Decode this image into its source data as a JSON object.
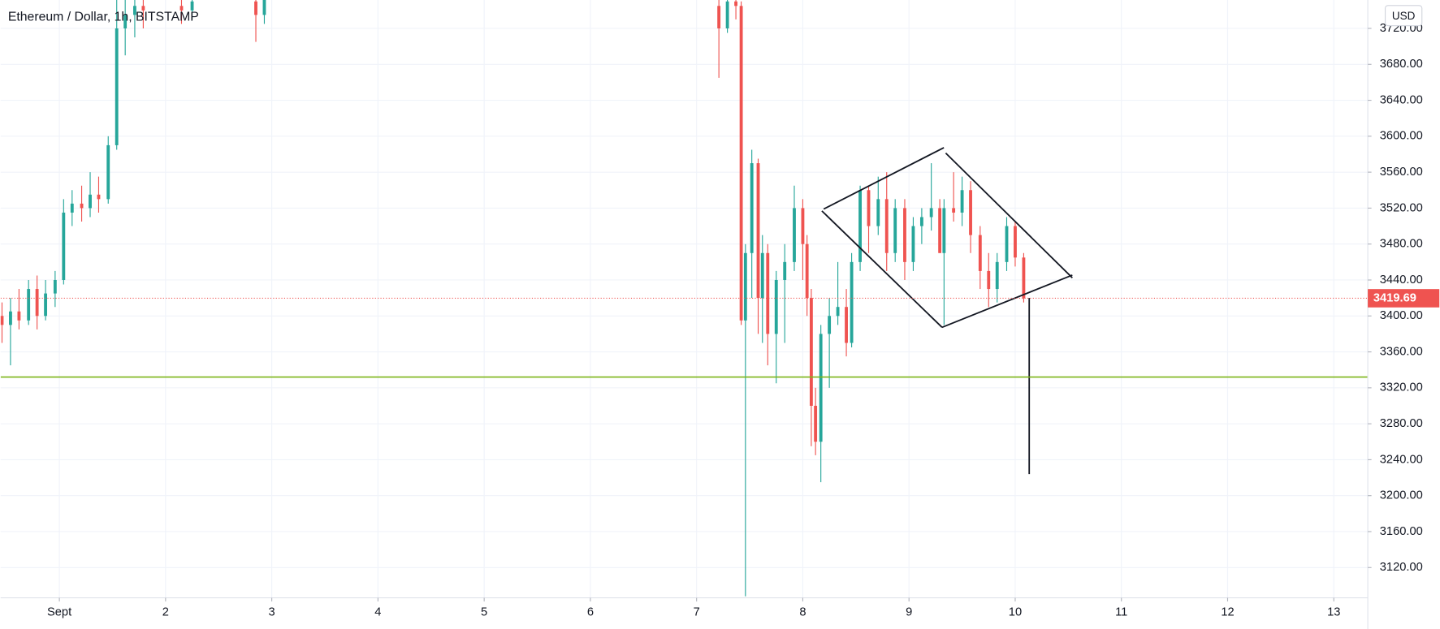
{
  "chart_data": {
    "type": "candlestick",
    "title": "Ethereum / Dollar, 1h, BITSTAMP",
    "currency": "USD",
    "up_color": "#26a69a",
    "down_color": "#ef5350",
    "grid": true,
    "xlim": [
      0.447,
      13.32
    ],
    "xticks": [
      {
        "value": 1,
        "label": "Sept"
      },
      2,
      3,
      4,
      5,
      6,
      7,
      8,
      9,
      10,
      11,
      12,
      13
    ],
    "ylim": [
      3086.3,
      3751.6
    ],
    "yticks": [
      {
        "value": 3120,
        "label": "3120.00"
      },
      {
        "value": 3160,
        "label": "3160.00"
      },
      {
        "value": 3200,
        "label": "3200.00"
      },
      {
        "value": 3240,
        "label": "3240.00"
      },
      {
        "value": 3280,
        "label": "3280.00"
      },
      {
        "value": 3320,
        "label": "3320.00"
      },
      {
        "value": 3360,
        "label": "3360.00"
      },
      {
        "value": 3400,
        "label": "3400.00"
      },
      {
        "value": 3440,
        "label": "3440.00"
      },
      {
        "value": 3480,
        "label": "3480.00"
      },
      {
        "value": 3520,
        "label": "3520.00"
      },
      {
        "value": 3560,
        "label": "3560.00"
      },
      {
        "value": 3600,
        "label": "3600.00"
      },
      {
        "value": 3640,
        "label": "3640.00"
      },
      {
        "value": 3680,
        "label": "3680.00"
      },
      {
        "value": 3720,
        "label": "3720.00"
      }
    ],
    "x": [
      0.46,
      0.54,
      0.62,
      0.71,
      0.79,
      0.87,
      0.96,
      1.04,
      1.12,
      1.21,
      1.29,
      1.37,
      1.46,
      1.54,
      1.62,
      1.71,
      1.79,
      2.15,
      2.25,
      2.85,
      2.93,
      7.21,
      7.29,
      7.37,
      7.42,
      7.46,
      7.52,
      7.58,
      7.62,
      7.67,
      7.75,
      7.83,
      7.92,
      8.0,
      8.04,
      8.08,
      8.12,
      8.17,
      8.25,
      8.33,
      8.41,
      8.46,
      8.54,
      8.62,
      8.71,
      8.79,
      8.87,
      8.96,
      9.04,
      9.12,
      9.21,
      9.29,
      9.33,
      9.42,
      9.5,
      9.58,
      9.67,
      9.75,
      9.83,
      9.92,
      10.0,
      10.08
    ],
    "open": [
      3400,
      3390,
      3405,
      3395,
      3430,
      3400,
      3425,
      3440,
      3515,
      3525,
      3520,
      3535,
      3530,
      3590,
      3720,
      3735,
      3745,
      3745,
      3740,
      3750,
      3735,
      3745,
      3720,
      3750,
      3745,
      3395,
      3470,
      3570,
      3420,
      3470,
      3380,
      3440,
      3460,
      3520,
      3480,
      3420,
      3300,
      3260,
      3380,
      3400,
      3410,
      3370,
      3460,
      3540,
      3500,
      3530,
      3470,
      3520,
      3460,
      3500,
      3510,
      3520,
      3470,
      3520,
      3515,
      3540,
      3490,
      3450,
      3430,
      3460,
      3500,
      3465
    ],
    "high": [
      3415,
      3420,
      3430,
      3440,
      3445,
      3440,
      3450,
      3530,
      3540,
      3545,
      3560,
      3555,
      3600,
      3760,
      3760,
      3760,
      3760,
      3760,
      3760,
      3760,
      3760,
      3760,
      3760,
      3760,
      3750,
      3480,
      3585,
      3575,
      3490,
      3480,
      3450,
      3480,
      3545,
      3530,
      3490,
      3430,
      3320,
      3390,
      3420,
      3460,
      3430,
      3470,
      3545,
      3545,
      3555,
      3560,
      3530,
      3530,
      3510,
      3520,
      3570,
      3530,
      3530,
      3560,
      3555,
      3550,
      3500,
      3470,
      3470,
      3510,
      3505,
      3470
    ],
    "low": [
      3370,
      3345,
      3385,
      3390,
      3385,
      3395,
      3410,
      3435,
      3500,
      3505,
      3510,
      3515,
      3525,
      3585,
      3690,
      3710,
      3720,
      3725,
      3730,
      3705,
      3725,
      3665,
      3715,
      3730,
      3390,
      3088,
      3420,
      3380,
      3370,
      3345,
      3325,
      3370,
      3450,
      3440,
      3400,
      3255,
      3245,
      3215,
      3320,
      3390,
      3355,
      3365,
      3450,
      3470,
      3490,
      3450,
      3460,
      3440,
      3450,
      3480,
      3495,
      3470,
      3390,
      3505,
      3500,
      3470,
      3430,
      3410,
      3415,
      3450,
      3455,
      3415
    ],
    "close": [
      3390,
      3405,
      3395,
      3430,
      3400,
      3425,
      3440,
      3515,
      3525,
      3520,
      3535,
      3530,
      3590,
      3720,
      3735,
      3745,
      3740,
      3740,
      3750,
      3735,
      3755,
      3720,
      3750,
      3745,
      3395,
      3470,
      3570,
      3420,
      3470,
      3380,
      3440,
      3460,
      3520,
      3480,
      3420,
      3300,
      3260,
      3380,
      3400,
      3410,
      3370,
      3460,
      3540,
      3500,
      3530,
      3470,
      3520,
      3460,
      3500,
      3510,
      3520,
      3470,
      3520,
      3515,
      3540,
      3490,
      3450,
      3430,
      3460,
      3500,
      3465,
      3419.69
    ],
    "last_price": 3419.69,
    "support_level": 3332
  }
}
